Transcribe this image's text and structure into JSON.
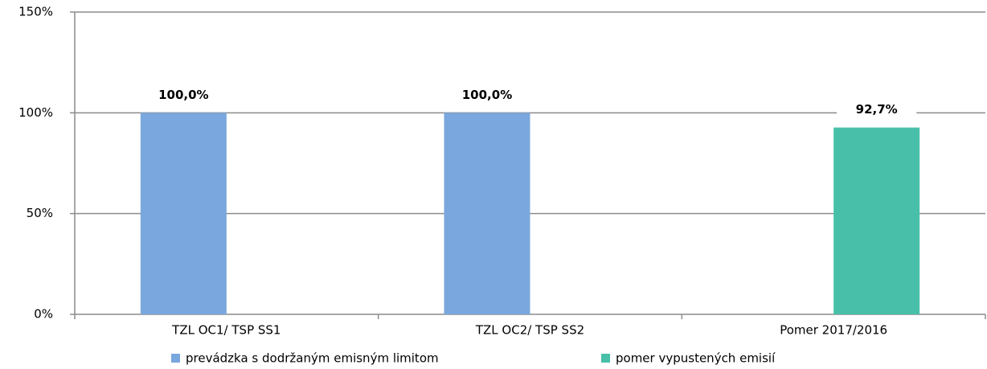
{
  "chart_data": {
    "type": "bar",
    "categories": [
      "TZL OC1/ TSP SS1",
      "TZL OC2/ TSP SS2",
      "Pomer  2017/2016"
    ],
    "series": [
      {
        "name": "prevádzka s dodržaným emisným limitom",
        "color": "#7aa7dd",
        "values": [
          100,
          100,
          null
        ],
        "value_labels": [
          "100,0%",
          "100,0%",
          null
        ]
      },
      {
        "name": "pomer vypustených emisií",
        "color": "#47bfa9",
        "values": [
          null,
          null,
          92.7
        ],
        "value_labels": [
          null,
          null,
          "92,7%"
        ]
      }
    ],
    "ylim": [
      0,
      150
    ],
    "yticks": [
      {
        "value": 0,
        "label": "0%"
      },
      {
        "value": 50,
        "label": "50%"
      },
      {
        "value": 100,
        "label": "100%"
      },
      {
        "value": 150,
        "label": "150%"
      }
    ],
    "grid": true,
    "legend": "bottom"
  }
}
